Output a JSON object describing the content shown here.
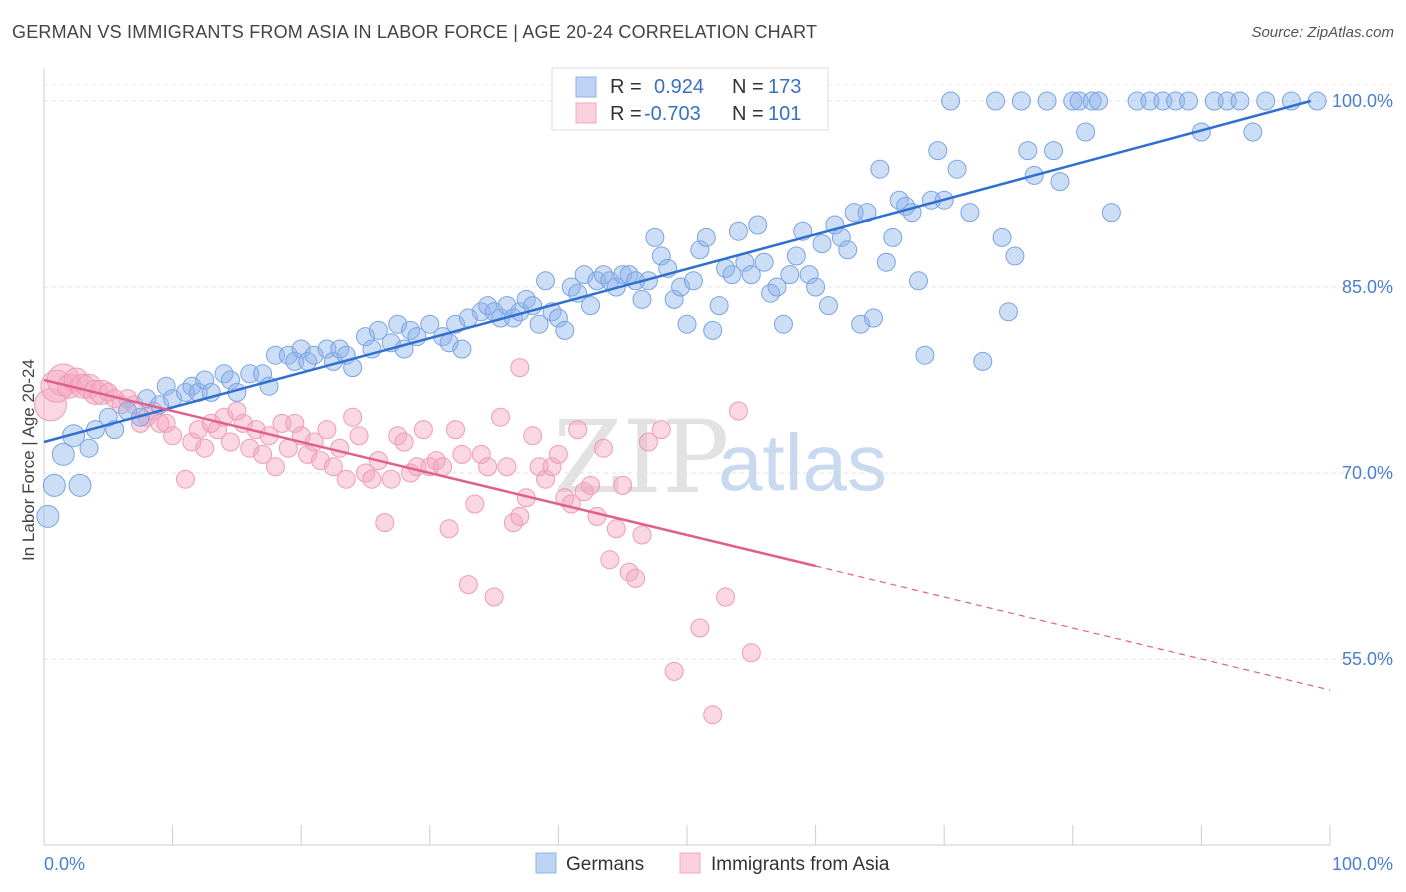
{
  "title": "GERMAN VS IMMIGRANTS FROM ASIA IN LABOR FORCE | AGE 20-24 CORRELATION CHART",
  "source": "Source: ZipAtlas.com",
  "watermark": {
    "zip": "ZIP",
    "atlas": "atlas"
  },
  "legend_top": {
    "rows": [
      {
        "r_label": "R =",
        "r_value": "0.924",
        "n_label": "N =",
        "n_value": "173"
      },
      {
        "r_label": "R =",
        "r_value": "-0.703",
        "n_label": "N =",
        "n_value": "101"
      }
    ]
  },
  "legend_bottom": [
    "Germans",
    "Immigrants from Asia"
  ],
  "colors": {
    "german": "#8fb4ea",
    "german_line": "#2f6fd0",
    "asia": "#f4a7c0",
    "asia_line": "#e0608a"
  },
  "chart_data": {
    "type": "scatter",
    "ylabel": "In Labor Force | Age 20-24",
    "xlim": [
      0,
      100
    ],
    "ylim": [
      40,
      102.5
    ],
    "x_ticks": [
      "0.0%",
      "100.0%"
    ],
    "y_ticks": [
      {
        "value": 100,
        "label": "100.0%"
      },
      {
        "value": 85,
        "label": "85.0%"
      },
      {
        "value": 70,
        "label": "70.0%"
      },
      {
        "value": 55,
        "label": "55.0%"
      }
    ],
    "series": [
      {
        "name": "Germans",
        "trend": {
          "x0": 0,
          "y0": 72.5,
          "x1": 98.5,
          "y1": 100
        },
        "points": [
          [
            0.3,
            66.5
          ],
          [
            0.8,
            69
          ],
          [
            1.5,
            71.5
          ],
          [
            2.3,
            73
          ],
          [
            2.8,
            69
          ],
          [
            3.5,
            72
          ],
          [
            4,
            73.5
          ],
          [
            5,
            74.5
          ],
          [
            5.5,
            73.5
          ],
          [
            6.5,
            75
          ],
          [
            7.5,
            74.5
          ],
          [
            8,
            76
          ],
          [
            9,
            75.5
          ],
          [
            9.5,
            77
          ],
          [
            10,
            76
          ],
          [
            11,
            76.5
          ],
          [
            11.5,
            77
          ],
          [
            12,
            76.5
          ],
          [
            12.5,
            77.5
          ],
          [
            13,
            76.5
          ],
          [
            14,
            78
          ],
          [
            14.5,
            77.5
          ],
          [
            15,
            76.5
          ],
          [
            16,
            78
          ],
          [
            17,
            78
          ],
          [
            17.5,
            77
          ],
          [
            18,
            79.5
          ],
          [
            19,
            79.5
          ],
          [
            19.5,
            79
          ],
          [
            20,
            80
          ],
          [
            20.5,
            79
          ],
          [
            21,
            79.5
          ],
          [
            22,
            80
          ],
          [
            22.5,
            79
          ],
          [
            23,
            80
          ],
          [
            23.5,
            79.5
          ],
          [
            24,
            78.5
          ],
          [
            25,
            81
          ],
          [
            25.5,
            80
          ],
          [
            26,
            81.5
          ],
          [
            27,
            80.5
          ],
          [
            27.5,
            82
          ],
          [
            28,
            80
          ],
          [
            28.5,
            81.5
          ],
          [
            29,
            81
          ],
          [
            30,
            82
          ],
          [
            31,
            81
          ],
          [
            31.5,
            80.5
          ],
          [
            32,
            82
          ],
          [
            32.5,
            80
          ],
          [
            33,
            82.5
          ],
          [
            34,
            83
          ],
          [
            34.5,
            83.5
          ],
          [
            35,
            83
          ],
          [
            35.5,
            82.5
          ],
          [
            36,
            83.5
          ],
          [
            36.5,
            82.5
          ],
          [
            37,
            83
          ],
          [
            37.5,
            84
          ],
          [
            38,
            83.5
          ],
          [
            38.5,
            82
          ],
          [
            39,
            85.5
          ],
          [
            39.5,
            83
          ],
          [
            40,
            82.5
          ],
          [
            40.5,
            81.5
          ],
          [
            41,
            85
          ],
          [
            41.5,
            84.5
          ],
          [
            42,
            86
          ],
          [
            42.5,
            83.5
          ],
          [
            43,
            85.5
          ],
          [
            43.5,
            86
          ],
          [
            44,
            85.5
          ],
          [
            44.5,
            85
          ],
          [
            45,
            86
          ],
          [
            45.5,
            86
          ],
          [
            46,
            85.5
          ],
          [
            46.5,
            84
          ],
          [
            47,
            85.5
          ],
          [
            47.5,
            89
          ],
          [
            48,
            87.5
          ],
          [
            48.5,
            86.5
          ],
          [
            49,
            84
          ],
          [
            49.5,
            85
          ],
          [
            50,
            82
          ],
          [
            50.5,
            85.5
          ],
          [
            51,
            88
          ],
          [
            51.5,
            89
          ],
          [
            52,
            81.5
          ],
          [
            52.5,
            83.5
          ],
          [
            53,
            86.5
          ],
          [
            53.5,
            86
          ],
          [
            54,
            89.5
          ],
          [
            54.5,
            87
          ],
          [
            55,
            86
          ],
          [
            55.5,
            90
          ],
          [
            56,
            87
          ],
          [
            56.5,
            84.5
          ],
          [
            57,
            85
          ],
          [
            57.5,
            82
          ],
          [
            58,
            86
          ],
          [
            58.5,
            87.5
          ],
          [
            59,
            89.5
          ],
          [
            59.5,
            86
          ],
          [
            60,
            85
          ],
          [
            60.5,
            88.5
          ],
          [
            61,
            83.5
          ],
          [
            61.5,
            90
          ],
          [
            62,
            89
          ],
          [
            62.5,
            88
          ],
          [
            63,
            91
          ],
          [
            63.5,
            82
          ],
          [
            64,
            91
          ],
          [
            64.5,
            82.5
          ],
          [
            65,
            94.5
          ],
          [
            65.5,
            87
          ],
          [
            66,
            89
          ],
          [
            66.5,
            92
          ],
          [
            67,
            91.5
          ],
          [
            67.5,
            91
          ],
          [
            68,
            85.5
          ],
          [
            68.5,
            79.5
          ],
          [
            69,
            92
          ],
          [
            69.5,
            96
          ],
          [
            70,
            92
          ],
          [
            70.5,
            100
          ],
          [
            71,
            94.5
          ],
          [
            72,
            91
          ],
          [
            73,
            79
          ],
          [
            74,
            100
          ],
          [
            74.5,
            89
          ],
          [
            75,
            83
          ],
          [
            75.5,
            87.5
          ],
          [
            76,
            100
          ],
          [
            76.5,
            96
          ],
          [
            77,
            94
          ],
          [
            78,
            100
          ],
          [
            78.5,
            96
          ],
          [
            79,
            93.5
          ],
          [
            80,
            100
          ],
          [
            80.5,
            100
          ],
          [
            81,
            97.5
          ],
          [
            81.5,
            100
          ],
          [
            82,
            100
          ],
          [
            83,
            91
          ],
          [
            85,
            100
          ],
          [
            86,
            100
          ],
          [
            87,
            100
          ],
          [
            88,
            100
          ],
          [
            89,
            100
          ],
          [
            90,
            97.5
          ],
          [
            91,
            100
          ],
          [
            92,
            100
          ],
          [
            93,
            100
          ],
          [
            94,
            97.5
          ],
          [
            95,
            100
          ],
          [
            97,
            100
          ],
          [
            99,
            100
          ]
        ]
      },
      {
        "name": "Immigrants from Asia",
        "trend": {
          "x0": 0,
          "y0": 77.5,
          "x1": 60,
          "y1": 62.5,
          "dash_to_x": 100,
          "dash_to_y": 52.5
        },
        "points": [
          [
            0.5,
            75.5
          ],
          [
            1,
            77
          ],
          [
            1.5,
            77.5
          ],
          [
            2,
            77
          ],
          [
            2.5,
            77.5
          ],
          [
            3,
            77
          ],
          [
            3.5,
            77
          ],
          [
            4,
            76.5
          ],
          [
            4.5,
            76.5
          ],
          [
            5,
            76.5
          ],
          [
            5.5,
            76
          ],
          [
            6,
            75.5
          ],
          [
            6.5,
            76
          ],
          [
            7,
            75.5
          ],
          [
            7.5,
            74
          ],
          [
            8,
            74.5
          ],
          [
            8.5,
            75
          ],
          [
            9,
            74
          ],
          [
            9.5,
            74
          ],
          [
            10,
            73
          ],
          [
            11,
            69.5
          ],
          [
            11.5,
            72.5
          ],
          [
            12,
            73.5
          ],
          [
            12.5,
            72
          ],
          [
            13,
            74
          ],
          [
            13.5,
            73.5
          ],
          [
            14,
            74.5
          ],
          [
            14.5,
            72.5
          ],
          [
            15,
            75
          ],
          [
            15.5,
            74
          ],
          [
            16,
            72
          ],
          [
            16.5,
            73.5
          ],
          [
            17,
            71.5
          ],
          [
            17.5,
            73
          ],
          [
            18,
            70.5
          ],
          [
            18.5,
            74
          ],
          [
            19,
            72
          ],
          [
            19.5,
            74
          ],
          [
            20,
            73
          ],
          [
            20.5,
            71.5
          ],
          [
            21,
            72.5
          ],
          [
            21.5,
            71
          ],
          [
            22,
            73.5
          ],
          [
            22.5,
            70.5
          ],
          [
            23,
            72
          ],
          [
            23.5,
            69.5
          ],
          [
            24,
            74.5
          ],
          [
            24.5,
            73
          ],
          [
            25,
            70
          ],
          [
            25.5,
            69.5
          ],
          [
            26,
            71
          ],
          [
            26.5,
            66
          ],
          [
            27,
            69.5
          ],
          [
            27.5,
            73
          ],
          [
            28,
            72.5
          ],
          [
            28.5,
            70
          ],
          [
            29,
            70.5
          ],
          [
            29.5,
            73.5
          ],
          [
            30,
            70.5
          ],
          [
            30.5,
            71
          ],
          [
            31,
            70.5
          ],
          [
            31.5,
            65.5
          ],
          [
            32,
            73.5
          ],
          [
            32.5,
            71.5
          ],
          [
            33,
            61
          ],
          [
            33.5,
            67.5
          ],
          [
            34,
            71.5
          ],
          [
            34.5,
            70.5
          ],
          [
            35,
            60
          ],
          [
            35.5,
            74.5
          ],
          [
            36,
            70.5
          ],
          [
            36.5,
            66
          ],
          [
            37,
            66.5
          ],
          [
            37.5,
            68
          ],
          [
            38,
            73
          ],
          [
            38.5,
            70.5
          ],
          [
            39,
            69.5
          ],
          [
            39.5,
            70.5
          ],
          [
            40,
            71.5
          ],
          [
            40.5,
            68
          ],
          [
            41,
            67.5
          ],
          [
            41.5,
            73.5
          ],
          [
            42,
            68.5
          ],
          [
            42.5,
            69
          ],
          [
            43,
            66.5
          ],
          [
            43.5,
            72
          ],
          [
            44,
            63
          ],
          [
            44.5,
            65.5
          ],
          [
            45,
            69
          ],
          [
            45.5,
            62
          ],
          [
            46,
            61.5
          ],
          [
            46.5,
            65
          ],
          [
            47,
            72.5
          ],
          [
            48,
            73.5
          ],
          [
            49,
            54
          ],
          [
            51,
            57.5
          ],
          [
            52,
            50.5
          ],
          [
            53,
            60
          ],
          [
            54,
            75
          ],
          [
            55,
            55.5
          ],
          [
            37,
            78.5
          ]
        ]
      }
    ]
  }
}
